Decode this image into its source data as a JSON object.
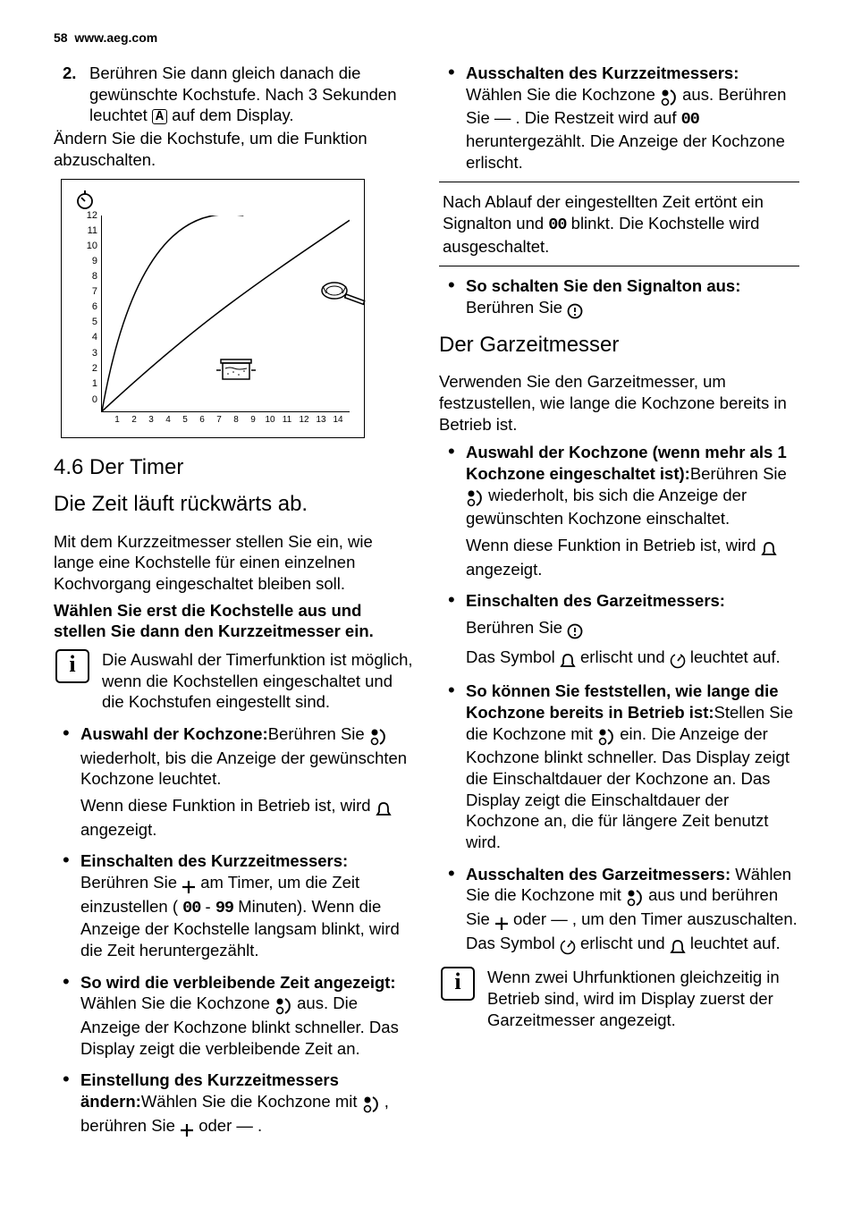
{
  "header": {
    "page_number": "58",
    "site": "www.aeg.com"
  },
  "intro": {
    "step_num": "2.",
    "step_text": "Berühren Sie dann gleich danach die gewünschte Kochstufe. Nach 3 Sekunden leuchtet ",
    "step_text_tail": " auf dem Display.",
    "after": "Ändern Sie die Kochstufe, um die Funktion abzuschalten."
  },
  "chart": {
    "y_ticks": [
      "12",
      "11",
      "10",
      "9",
      "8",
      "7",
      "6",
      "5",
      "4",
      "3",
      "2",
      "1",
      "0"
    ],
    "x_ticks": [
      "1",
      "2",
      "3",
      "4",
      "5",
      "6",
      "7",
      "8",
      "9",
      "10",
      "11",
      "12",
      "13",
      "14"
    ],
    "line1": "M 0 206 C 40 -5, 120 -5, 160 0",
    "line2": "M 0 206 C 100 120, 160 80, 280 5",
    "y_axis_color": "#000",
    "pot_x": 135,
    "pot_y": 155,
    "pan_x": 245,
    "pan_y": 74
  },
  "section": {
    "num": "4.6",
    "title": "Der Timer",
    "subtitle": "Die Zeit läuft rückwärts ab.",
    "intro": "Mit dem Kurzzeitmesser stellen Sie ein, wie lange eine Kochstelle für einen einzelnen Kochvorgang eingeschaltet bleiben soll.",
    "bold_intro": "Wählen Sie erst die Kochstelle aus und stellen Sie dann den Kurzzeitmesser ein.",
    "info1": "Die Auswahl der Timerfunktion ist möglich, wenn die Kochstellen eingeschaltet und die Kochstufen eingestellt sind."
  },
  "left_bullets": {
    "b1_bold": "Auswahl der Kochzone:",
    "b1_a": "Berühren Sie",
    "b1_b": "wiederholt, bis die Anzeige der gewünschten Kochzone leuchtet.",
    "b1_sub_a": "Wenn diese Funktion in Betrieb ist, wird",
    "b1_sub_b": "angezeigt.",
    "b2_bold": "Einschalten des Kurzzeitmessers:",
    "b2_a": "Berühren Sie",
    "b2_b": "am Timer, um die Zeit einzustellen (",
    "b2_seg1": "00",
    "b2_dash": " - ",
    "b2_seg2": "99",
    "b2_c": " Minuten). Wenn die Anzeige der Kochstelle langsam blinkt, wird die Zeit heruntergezählt.",
    "b3_bold": "So wird die verbleibende Zeit angezeigt:",
    "b3_a": " Wählen Sie die Kochzone",
    "b3_b": "aus. Die Anzeige der Kochzone blinkt schneller. Das Display zeigt die verbleibende Zeit an."
  },
  "right_bullets": {
    "b4_bold": "Einstellung des Kurzzeitmessers ändern:",
    "b4_a": "Wählen Sie die Kochzone mit",
    "b4_b": ", berühren Sie",
    "b4_c": "oder",
    "b4_d": ".",
    "b5_bold": "Ausschalten des Kurzzeitmessers:",
    "b5_a": "Wählen Sie die Kochzone",
    "b5_b": "aus. Berühren Sie",
    "b5_c": ". Die Restzeit wird auf",
    "b5_seg": "00",
    "b5_d": "heruntergezählt. Die Anzeige der Kochzone erlischt."
  },
  "callout": {
    "a": "Nach Ablauf der eingestellten Zeit ertönt ein Signalton und",
    "seg": "00",
    "b": "blinkt. Die Kochstelle wird ausgeschaltet."
  },
  "signal_off": {
    "bold": "So schalten Sie den Signalton aus:",
    "text": "Berühren Sie"
  },
  "garzeit": {
    "title": "Der Garzeitmesser",
    "intro": "Verwenden Sie den Garzeitmesser, um festzustellen, wie lange die Kochzone bereits in Betrieb ist.",
    "g1_bold": "Auswahl der Kochzone (wenn mehr als 1 Kochzone eingeschaltet ist):",
    "g1_a": "Berühren Sie",
    "g1_b": "wiederholt, bis sich die Anzeige der gewünschten Kochzone einschaltet.",
    "g1_sub_a": "Wenn diese Funktion in Betrieb ist, wird",
    "g1_sub_b": "angezeigt.",
    "g2_bold": "Einschalten des Garzeitmessers:",
    "g2_a": "Berühren Sie",
    "g2_sub_a": "Das Symbol",
    "g2_sub_b": "erlischt und",
    "g2_sub_c": "leuchtet auf.",
    "g3_bold": "So können Sie feststellen, wie lange die Kochzone bereits in Betrieb ist:",
    "g3_a": "Stellen Sie die Kochzone mit",
    "g3_b": "ein. Die Anzeige der Kochzone blinkt schneller. Das Display zeigt die Einschaltdauer der Kochzone an. Das Display zeigt die Einschaltdauer der Kochzone an, die für längere Zeit benutzt wird.",
    "g4_bold": "Ausschalten des Garzeitmessers:",
    "g4_a": "Wählen Sie die Kochzone mit",
    "g4_b": "aus und berühren Sie",
    "g4_c": "oder",
    "g4_d": ", um den Timer auszuschalten. Das Symbol",
    "g4_e": "erlischt und",
    "g4_f": "leuchtet auf.",
    "info2": "Wenn zwei Uhrfunktionen gleichzeitig in Betrieb sind, wird im Display zuerst der Garzeitmesser angezeigt."
  },
  "icons": {
    "minus_glyph": "—",
    "plus_width": 16
  }
}
